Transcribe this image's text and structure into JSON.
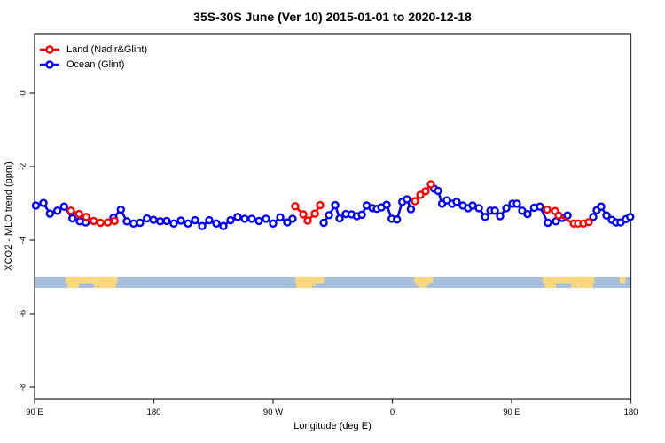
{
  "chart_data": {
    "type": "line",
    "title": "35S-30S June (Ver 10)   2015-01-01 to 2020-12-18",
    "xlabel": "Longitude (deg E)",
    "ylabel": "XCO2 - MLO trend (ppm)",
    "xlim": [
      90,
      540
    ],
    "ylim": [
      -8.3,
      1.6
    ],
    "grid": "off",
    "legend_position": "top-left",
    "x_ticks": [
      {
        "lon": 90,
        "label": "90 E"
      },
      {
        "lon": 180,
        "label": "180"
      },
      {
        "lon": 270,
        "label": "90 W"
      },
      {
        "lon": 360,
        "label": "0"
      },
      {
        "lon": 450,
        "label": "90 E"
      },
      {
        "lon": 540,
        "label": "180"
      }
    ],
    "y_ticks": [
      {
        "v": 0,
        "label": "0"
      },
      {
        "v": -2,
        "label": "-2"
      },
      {
        "v": -4,
        "label": "-4"
      },
      {
        "v": -6,
        "label": "-6"
      },
      {
        "v": -8,
        "label": "-8"
      }
    ],
    "legend": [
      {
        "label": "Land (Nadir&Glint)",
        "color": "#ff0000"
      },
      {
        "label": "Ocean (Glint)",
        "color": "#0000ff"
      }
    ],
    "series": [
      {
        "name": "Ocean (Glint)",
        "color": "#0000ff",
        "segments": [
          [
            [
              91,
              -3.06
            ],
            [
              96.7,
              -2.99
            ],
            [
              101.6,
              -3.28
            ],
            [
              107.2,
              -3.2
            ],
            [
              112.3,
              -3.09
            ],
            [
              118.6,
              -3.41
            ],
            [
              124.1,
              -3.49
            ],
            [
              128.6,
              -3.52
            ]
          ],
          [
            [
              149.6,
              -3.39
            ],
            [
              155.1,
              -3.17
            ],
            [
              159.6,
              -3.49
            ],
            [
              164.7,
              -3.55
            ],
            [
              169.6,
              -3.53
            ],
            [
              174.8,
              -3.41
            ],
            [
              179.7,
              -3.45
            ],
            [
              184.8,
              -3.49
            ],
            [
              189.7,
              -3.48
            ],
            [
              195,
              -3.55
            ],
            [
              200.4,
              -3.47
            ],
            [
              205.8,
              -3.55
            ],
            [
              211.1,
              -3.46
            ],
            [
              216.5,
              -3.62
            ],
            [
              221.8,
              -3.46
            ],
            [
              227.2,
              -3.55
            ],
            [
              232.5,
              -3.62
            ],
            [
              237.9,
              -3.46
            ],
            [
              243.2,
              -3.37
            ],
            [
              248.6,
              -3.42
            ],
            [
              253.9,
              -3.42
            ],
            [
              259.3,
              -3.48
            ],
            [
              264.6,
              -3.42
            ],
            [
              270,
              -3.55
            ],
            [
              275.4,
              -3.38
            ],
            [
              280.7,
              -3.52
            ],
            [
              284.7,
              -3.42
            ]
          ],
          [
            [
              308.2,
              -3.53
            ],
            [
              312.2,
              -3.32
            ],
            [
              316.9,
              -3.05
            ],
            [
              320.2,
              -3.41
            ],
            [
              324.9,
              -3.29
            ],
            [
              329.2,
              -3.3
            ],
            [
              333.2,
              -3.35
            ],
            [
              337,
              -3.31
            ],
            [
              340.6,
              -3.06
            ],
            [
              345,
              -3.13
            ],
            [
              348.3,
              -3.15
            ],
            [
              351.7,
              -3.11
            ],
            [
              355.7,
              -3.04
            ],
            [
              359.5,
              -3.42
            ],
            [
              363.5,
              -3.44
            ],
            [
              367.5,
              -2.96
            ],
            [
              371,
              -2.89
            ],
            [
              374,
              -3.16
            ]
          ],
          [
            [
              391.5,
              -2.6
            ],
            [
              394.5,
              -2.66
            ],
            [
              397.5,
              -3.01
            ],
            [
              401.1,
              -2.92
            ],
            [
              405.2,
              -3.01
            ],
            [
              408.5,
              -2.96
            ],
            [
              413.2,
              -3.06
            ],
            [
              417.2,
              -3.13
            ],
            [
              420.6,
              -3.06
            ],
            [
              425.3,
              -3.13
            ],
            [
              430,
              -3.37
            ],
            [
              434,
              -3.2
            ],
            [
              437.3,
              -3.2
            ],
            [
              441.3,
              -3.35
            ],
            [
              446,
              -3.13
            ],
            [
              450.7,
              -3.01
            ],
            [
              454,
              -3.01
            ],
            [
              458,
              -3.2
            ],
            [
              462,
              -3.29
            ],
            [
              467,
              -3.12
            ],
            [
              471.4,
              -3.09
            ],
            [
              477.4,
              -3.53
            ],
            [
              483.4,
              -3.49
            ],
            [
              488.2,
              -3.4
            ],
            [
              492.2,
              -3.33
            ]
          ],
          [
            [
              511.6,
              -3.37
            ],
            [
              514.2,
              -3.19
            ],
            [
              517.6,
              -3.09
            ],
            [
              521.6,
              -3.33
            ],
            [
              525.6,
              -3.45
            ],
            [
              528.9,
              -3.52
            ],
            [
              532.3,
              -3.52
            ],
            [
              536.3,
              -3.43
            ],
            [
              539.5,
              -3.37
            ]
          ]
        ]
      },
      {
        "name": "Land (Nadir&Glint)",
        "color": "#ff0000",
        "segments": [
          [
            [
              117.4,
              -3.2
            ],
            [
              123.6,
              -3.29
            ],
            [
              129,
              -3.37
            ],
            [
              134.6,
              -3.48
            ],
            [
              139.7,
              -3.53
            ],
            [
              145.3,
              -3.52
            ],
            [
              150.4,
              -3.48
            ]
          ],
          [
            [
              286.7,
              -3.08
            ],
            [
              292.8,
              -3.3
            ],
            [
              296.1,
              -3.47
            ],
            [
              301.5,
              -3.28
            ],
            [
              305.5,
              -3.05
            ]
          ],
          [
            [
              377.1,
              -2.94
            ],
            [
              381.1,
              -2.77
            ],
            [
              385.1,
              -2.67
            ],
            [
              389.1,
              -2.48
            ]
          ],
          [
            [
              476.8,
              -3.17
            ],
            [
              482.8,
              -3.21
            ],
            [
              485.5,
              -3.33
            ],
            [
              496.9,
              -3.55
            ],
            [
              500.2,
              -3.55
            ],
            [
              504.2,
              -3.55
            ],
            [
              508.2,
              -3.51
            ]
          ]
        ]
      }
    ],
    "map_strip": {
      "description": "world coastline strip for 35S-30S latitude band",
      "value_top": -5.01,
      "value_bottom": -5.3,
      "ocean_color": "#a8bedd",
      "land_color": "#fbd87d",
      "land_patches": [
        {
          "name": "australia",
          "rects": [
            [
              113.5,
              152.5,
              0,
              0.55
            ],
            [
              115,
              123.5,
              0.55,
              1
            ],
            [
              135,
              137.5,
              0.55,
              1
            ],
            [
              138.5,
              151.5,
              0.55,
              1
            ],
            [
              137.5,
              138.5,
              0.55,
              0.78
            ]
          ]
        },
        {
          "name": "south-america",
          "rects": [
            [
              287,
              308.5,
              0,
              0.55
            ],
            [
              287.5,
              299.5,
              0.55,
              1
            ],
            [
              299.5,
              302,
              0.55,
              0.8
            ]
          ]
        },
        {
          "name": "africa",
          "rects": [
            [
              376.7,
              390.7,
              0,
              0.5
            ],
            [
              378,
              387.5,
              0.5,
              0.78
            ],
            [
              379.5,
              385.5,
              0.78,
              1
            ]
          ]
        },
        {
          "name": "australia-2",
          "rects": [
            [
              473.5,
              512.5,
              0,
              0.55
            ],
            [
              475,
              483.5,
              0.55,
              1
            ],
            [
              495,
              497.5,
              0.55,
              1
            ],
            [
              498.5,
              511.5,
              0.55,
              1
            ],
            [
              497.5,
              498.5,
              0.55,
              0.78
            ]
          ]
        },
        {
          "name": "new-zealand",
          "rects": [
            [
              531.5,
              536,
              0,
              0.55
            ]
          ]
        }
      ]
    },
    "style": {
      "box_color": "#333333",
      "text_color": "#000000",
      "background": "#ffffff"
    }
  }
}
